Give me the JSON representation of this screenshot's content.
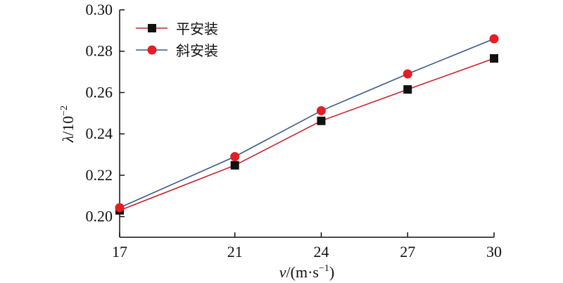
{
  "chart_data": {
    "type": "line",
    "x": [
      17,
      21,
      24,
      27,
      30
    ],
    "x_tick_labels": [
      "17",
      "21",
      "24",
      "27",
      "30"
    ],
    "y_tick_labels": [
      "0.20",
      "0.22",
      "0.24",
      "0.26",
      "0.28",
      "0.30"
    ],
    "y_ticks": [
      0.2,
      0.22,
      0.24,
      0.26,
      0.28,
      0.3
    ],
    "ylim": [
      0.19,
      0.3
    ],
    "xlim": [
      17,
      30
    ],
    "xlabel_var": "v",
    "xlabel_unit": "/(m·s",
    "xlabel_exp": "−1",
    "xlabel_close": ")",
    "ylabel_var": "λ",
    "ylabel_unit": "/10",
    "ylabel_exp": "−2",
    "grid": false,
    "legend_position": "top-left",
    "series": [
      {
        "name": "平安装",
        "marker": "square",
        "line_color": "#c8202a",
        "marker_color": "#111111",
        "values": [
          0.203,
          0.2248,
          0.2463,
          0.2615,
          0.2765
        ]
      },
      {
        "name": "斜安装",
        "marker": "circle",
        "line_color": "#3a5a85",
        "marker_color": "#e31e24",
        "values": [
          0.2043,
          0.229,
          0.2512,
          0.269,
          0.286
        ]
      }
    ]
  }
}
